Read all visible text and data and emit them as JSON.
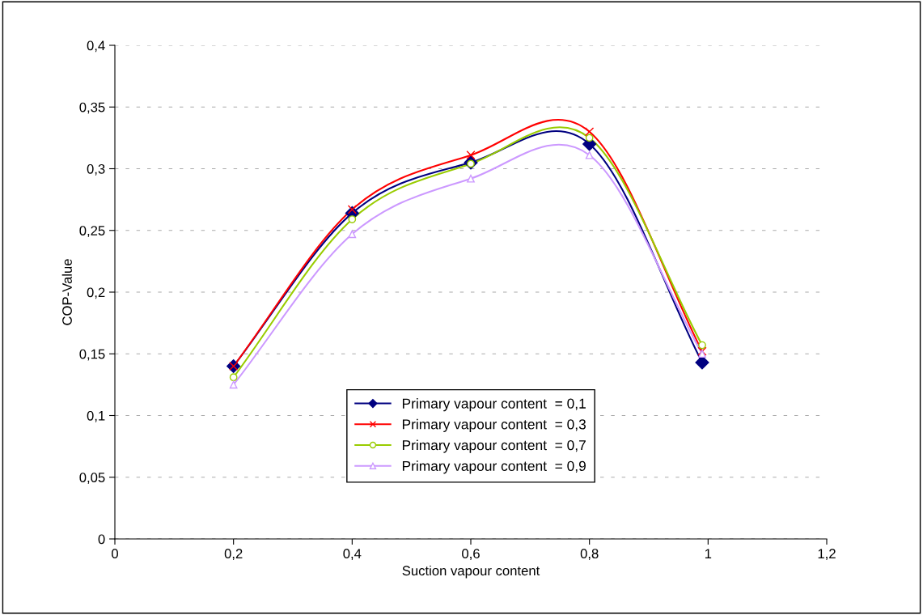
{
  "chart_data": {
    "type": "line",
    "xlabel": "Suction vapour content",
    "ylabel": "COP-Value",
    "x": [
      0.2,
      0.4,
      0.6,
      0.8,
      0.99
    ],
    "series": [
      {
        "name": "Primary vapour content  = 0,1",
        "color": "#000080",
        "marker": "diamond",
        "values": [
          0.14,
          0.264,
          0.305,
          0.32,
          0.143
        ]
      },
      {
        "name": "Primary vapour content  = 0,3",
        "color": "#ff0000",
        "marker": "cross",
        "values": [
          0.14,
          0.267,
          0.311,
          0.33,
          0.152
        ]
      },
      {
        "name": "Primary vapour content  = 0,7",
        "color": "#99cc00",
        "marker": "circle",
        "values": [
          0.131,
          0.259,
          0.304,
          0.325,
          0.157
        ]
      },
      {
        "name": "Primary vapour content  = 0,9",
        "color": "#cc99ff",
        "marker": "triangle",
        "values": [
          0.125,
          0.247,
          0.292,
          0.311,
          0.15
        ]
      }
    ],
    "xlim": [
      0,
      1.2
    ],
    "xticks": [
      {
        "value": 0,
        "label": "0"
      },
      {
        "value": 0.2,
        "label": "0,2"
      },
      {
        "value": 0.4,
        "label": "0,4"
      },
      {
        "value": 0.6,
        "label": "0,6"
      },
      {
        "value": 0.8,
        "label": "0,8"
      },
      {
        "value": 1,
        "label": "1"
      },
      {
        "value": 1.2,
        "label": "1,2"
      }
    ],
    "ylim": [
      0,
      0.4
    ],
    "yticks": [
      {
        "value": 0,
        "label": "0"
      },
      {
        "value": 0.05,
        "label": "0,05"
      },
      {
        "value": 0.1,
        "label": "0,1"
      },
      {
        "value": 0.15,
        "label": "0,15"
      },
      {
        "value": 0.2,
        "label": "0,2"
      },
      {
        "value": 0.25,
        "label": "0,25"
      },
      {
        "value": 0.3,
        "label": "0,3"
      },
      {
        "value": 0.35,
        "label": "0,35"
      },
      {
        "value": 0.4,
        "label": "0,4"
      }
    ],
    "grid": "y",
    "legend": "bottom",
    "line_style": "solid"
  }
}
